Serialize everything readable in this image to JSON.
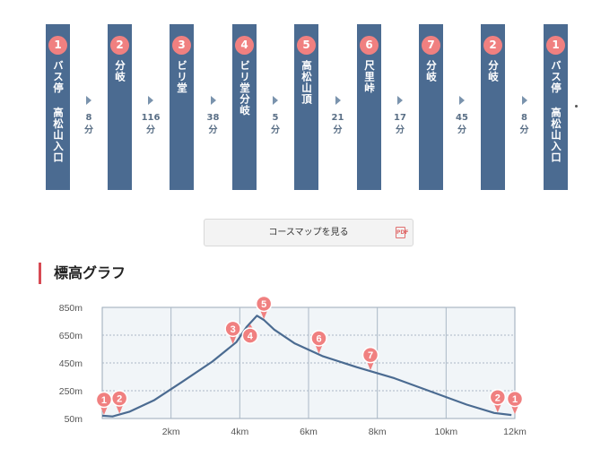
{
  "course": {
    "stops": [
      {
        "num": "1",
        "name": "バス停 高松山入口"
      },
      {
        "num": "2",
        "name": "分岐"
      },
      {
        "num": "3",
        "name": "ビリ堂"
      },
      {
        "num": "4",
        "name": "ビリ堂分岐"
      },
      {
        "num": "5",
        "name": "高松山頂"
      },
      {
        "num": "6",
        "name": "尺里峠"
      },
      {
        "num": "7",
        "name": "分岐"
      },
      {
        "num": "2",
        "name": "分岐"
      },
      {
        "num": "1",
        "name": "バス停 高松山入口"
      }
    ],
    "legs": [
      {
        "minutes": "8",
        "unit": "分"
      },
      {
        "minutes": "116",
        "unit": "分"
      },
      {
        "minutes": "38",
        "unit": "分"
      },
      {
        "minutes": "5",
        "unit": "分"
      },
      {
        "minutes": "21",
        "unit": "分"
      },
      {
        "minutes": "17",
        "unit": "分"
      },
      {
        "minutes": "45",
        "unit": "分"
      },
      {
        "minutes": "8",
        "unit": "分"
      }
    ]
  },
  "map_button": {
    "label": "コースマップを見る",
    "icon": "pdf-icon"
  },
  "section": {
    "title": "標高グラフ"
  },
  "colors": {
    "stop_bg": "#4b6b91",
    "badge": "#f08080",
    "line": "#4b6b91",
    "accent": "#d74a53"
  },
  "chart_data": {
    "type": "line",
    "title": "標高グラフ",
    "xlabel": "",
    "ylabel": "",
    "xlim": [
      0,
      12
    ],
    "ylim": [
      50,
      850
    ],
    "xticks": [
      "2km",
      "4km",
      "6km",
      "8km",
      "10km",
      "12km"
    ],
    "yticks": [
      "850m",
      "650m",
      "450m",
      "250m",
      "50m"
    ],
    "grid": true,
    "x": [
      0,
      0.3,
      0.8,
      1.5,
      2.3,
      3.2,
      3.9,
      4.2,
      4.5,
      4.7,
      5.0,
      5.6,
      6.4,
      7.4,
      8.5,
      9.6,
      10.6,
      11.4,
      11.9
    ],
    "y": [
      70,
      65,
      100,
      180,
      310,
      460,
      600,
      710,
      790,
      760,
      690,
      590,
      500,
      420,
      340,
      240,
      150,
      90,
      75
    ],
    "markers": [
      {
        "label": "1",
        "x": 0.05
      },
      {
        "label": "2",
        "x": 0.5
      },
      {
        "label": "3",
        "x": 3.8
      },
      {
        "label": "4",
        "x": 4.3
      },
      {
        "label": "5",
        "x": 4.7
      },
      {
        "label": "6",
        "x": 6.3
      },
      {
        "label": "7",
        "x": 7.8
      },
      {
        "label": "2",
        "x": 11.5
      },
      {
        "label": "1",
        "x": 12.0
      }
    ]
  }
}
